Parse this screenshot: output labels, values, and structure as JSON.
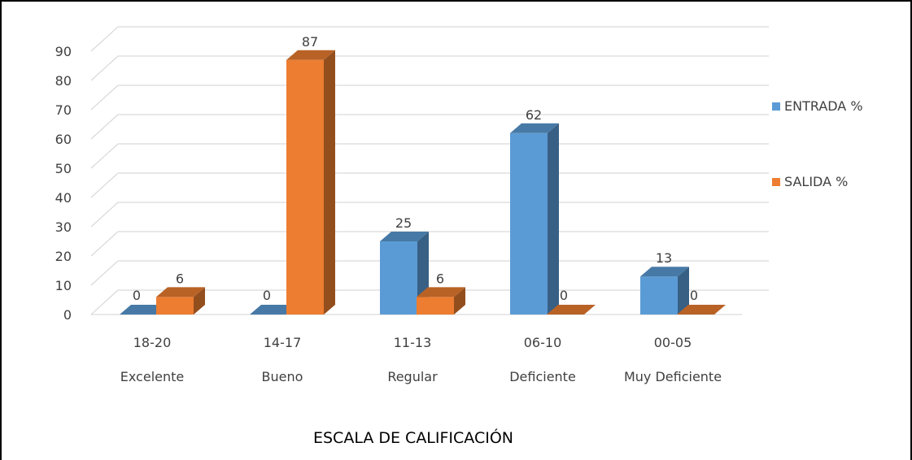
{
  "chart_data": {
    "type": "bar",
    "categories": [
      "18-20",
      "14-17",
      "11-13",
      "06-10",
      "00-05"
    ],
    "category_descriptions": [
      "Excelente",
      "Bueno",
      "Regular",
      "Deficiente",
      "Muy Deficiente"
    ],
    "series": [
      {
        "name": "ENTRADA %",
        "values": [
          0,
          0,
          25,
          62,
          13
        ],
        "color": "#5B9BD5"
      },
      {
        "name": "SALIDA %",
        "values": [
          6,
          87,
          6,
          0,
          0
        ],
        "color": "#ED7D31"
      }
    ],
    "ylim": [
      0,
      90
    ],
    "yticks": [
      0,
      10,
      20,
      30,
      40,
      50,
      60,
      70,
      80,
      90
    ],
    "xlabel": "ESCALA DE CALIFICACIÓN",
    "legend": "right",
    "grid": true,
    "style": "3d-clustered-column",
    "data_labels": true
  }
}
